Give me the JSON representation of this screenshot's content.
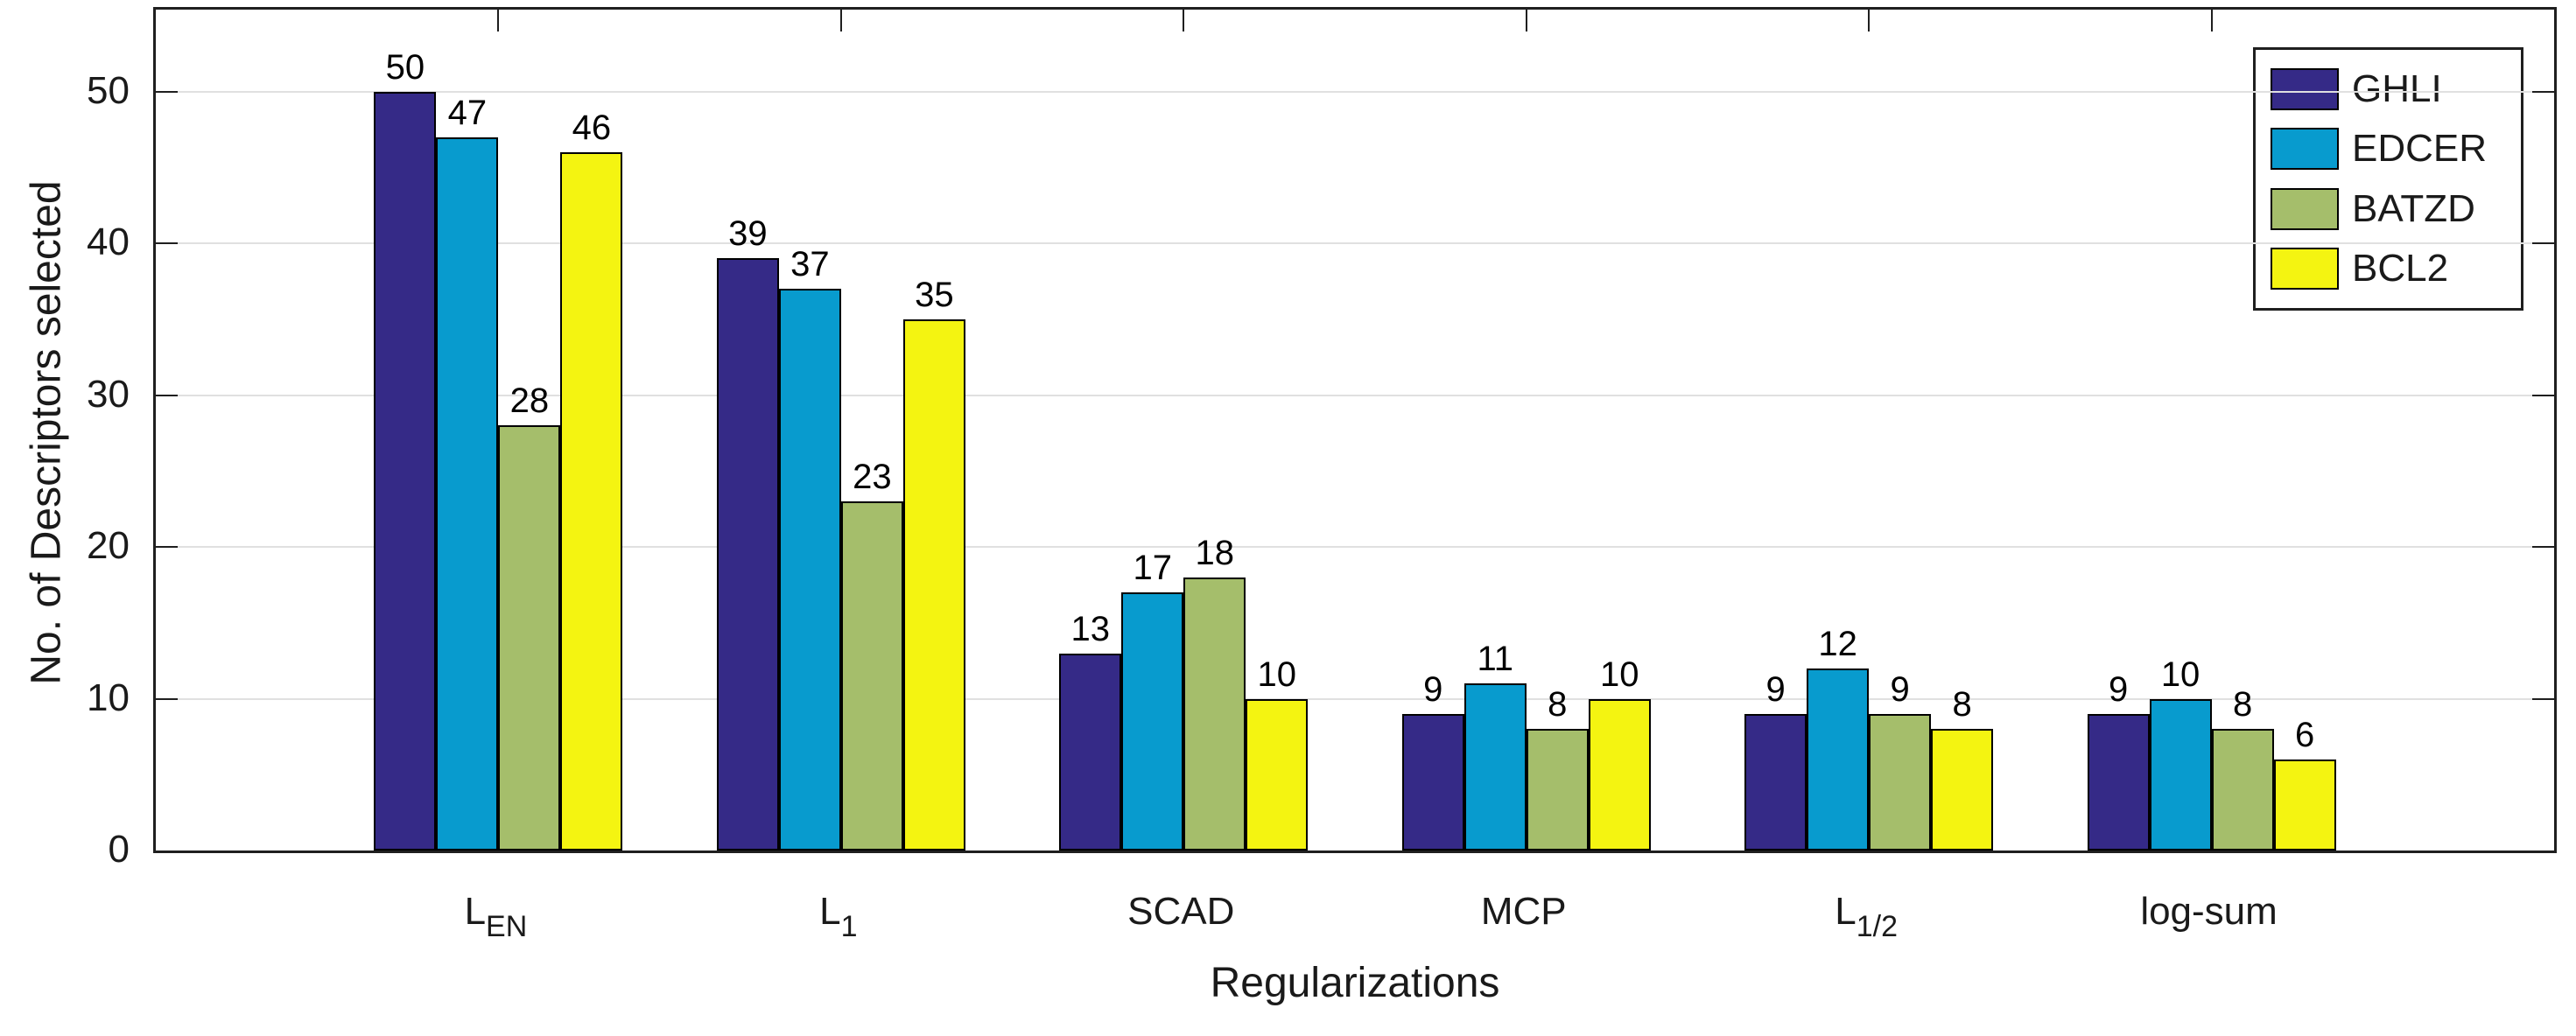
{
  "chart_data": {
    "type": "bar",
    "title": "",
    "xlabel": "Regularizations",
    "ylabel": "No. of Descriptors selected",
    "ylim": [
      0,
      55.4
    ],
    "yticks": [
      0,
      10,
      20,
      30,
      40,
      50
    ],
    "grid": "horizontal",
    "bar_labels": true,
    "legend_position": "top-right",
    "categories": [
      {
        "main": "L",
        "sub": "EN"
      },
      {
        "main": "L",
        "sub": "1"
      },
      {
        "main": "SCAD",
        "sub": ""
      },
      {
        "main": "MCP",
        "sub": ""
      },
      {
        "main": "L",
        "sub": "1/2"
      },
      {
        "main": "log-sum",
        "sub": ""
      }
    ],
    "series": [
      {
        "name": "GHLI",
        "color": "#352A87",
        "values": [
          50,
          39,
          13,
          9,
          9,
          9
        ]
      },
      {
        "name": "EDCER",
        "color": "#089BCE",
        "values": [
          47,
          37,
          17,
          11,
          12,
          10
        ]
      },
      {
        "name": "BATZD",
        "color": "#A5BE6B",
        "values": [
          28,
          23,
          18,
          8,
          9,
          8
        ]
      },
      {
        "name": "BCL2",
        "color": "#F4F411",
        "values": [
          46,
          35,
          10,
          10,
          8,
          6
        ]
      }
    ]
  }
}
